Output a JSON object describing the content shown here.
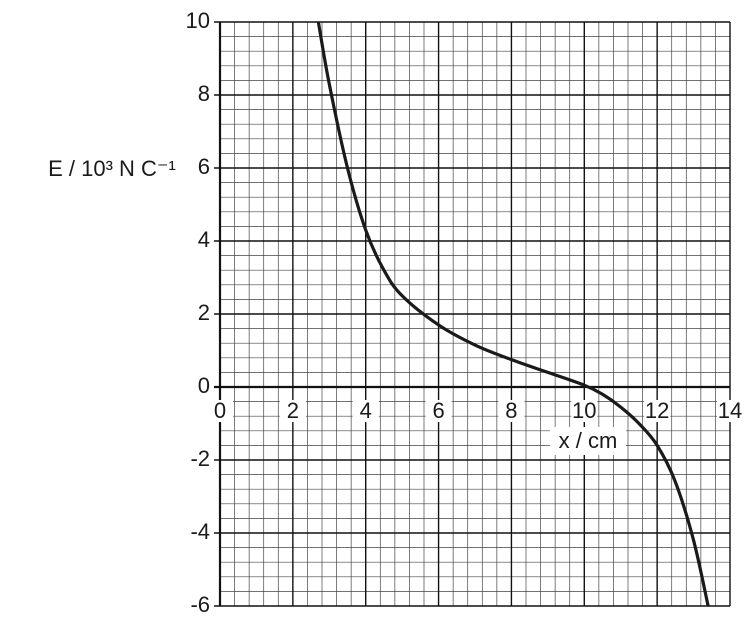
{
  "chart_data": {
    "type": "line",
    "x_label": "x / cm",
    "y_label": "E / 10³ N C⁻¹",
    "series": [
      {
        "name": "E",
        "color": "#1a1a1a",
        "x": [
          2.7,
          3,
          3.5,
          4,
          4.5,
          5,
          6,
          7,
          8,
          9,
          10,
          10.5,
          11,
          11.5,
          12,
          12.5,
          13,
          13.4
        ],
        "values": [
          10,
          8.3,
          6,
          4.3,
          3.2,
          2.5,
          1.7,
          1.15,
          0.75,
          0.4,
          0.05,
          -0.2,
          -0.55,
          -1.0,
          -1.6,
          -2.6,
          -4.2,
          -6
        ]
      }
    ],
    "xlim": [
      0,
      14
    ],
    "ylim": [
      -6,
      10
    ],
    "xticks": [
      0,
      2,
      4,
      6,
      8,
      10,
      12,
      14
    ],
    "yticks": [
      -6,
      -4,
      -2,
      0,
      2,
      4,
      6,
      8,
      10
    ],
    "x_minor_grid": [
      0.4,
      0.8,
      1.2,
      1.6,
      2.4,
      2.8,
      3.2,
      3.6,
      4.4,
      4.8,
      5.2,
      5.6,
      6.4,
      6.8,
      7.2,
      7.6,
      8.4,
      8.8,
      9.2,
      9.6,
      10.4,
      10.8,
      11.2,
      11.6,
      12.4,
      12.8,
      13.2,
      13.6
    ],
    "y_minor_grid": [
      -5.6,
      -5.2,
      -4.8,
      -4.4,
      -3.6,
      -3.2,
      -2.8,
      -2.4,
      -1.6,
      -1.2,
      -0.8,
      -0.4,
      0.4,
      0.8,
      1.2,
      1.6,
      2.4,
      2.8,
      3.2,
      3.6,
      4.4,
      4.8,
      5.2,
      5.6,
      6.4,
      6.8,
      7.2,
      7.6,
      8.4,
      8.8,
      9.2,
      9.6
    ],
    "grid": true
  }
}
